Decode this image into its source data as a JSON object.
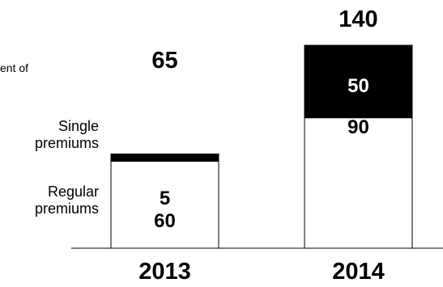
{
  "chart_data": {
    "type": "bar",
    "stacked": true,
    "title": "",
    "cut_text": "ent of",
    "categories": [
      "2013",
      "2014"
    ],
    "series": [
      {
        "name": "Regular premiums",
        "values": [
          60,
          90
        ],
        "color": "#ffffff"
      },
      {
        "name": "Single premiums",
        "values": [
          5,
          50
        ],
        "color": "#000000"
      }
    ],
    "totals": [
      65,
      140
    ],
    "ylim": [
      0,
      140
    ],
    "legend": "left",
    "grid": false
  }
}
